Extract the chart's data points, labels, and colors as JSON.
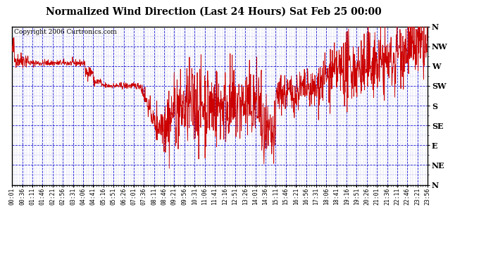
{
  "title": "Normalized Wind Direction (Last 24 Hours) Sat Feb 25 00:00",
  "copyright_text": "Copyright 2006 Curtronics.com",
  "ytick_labels": [
    "N",
    "NW",
    "W",
    "SW",
    "S",
    "SE",
    "E",
    "NE",
    "N"
  ],
  "ytick_values": [
    8,
    7,
    6,
    5,
    4,
    3,
    2,
    1,
    0
  ],
  "line_color": "#cc0000",
  "background_color": "#ffffff",
  "grid_color": "#0000cc",
  "border_color": "#000000",
  "title_fontsize": 10,
  "label_fontsize": 8,
  "copyright_fontsize": 6.5,
  "xtick_labels": [
    "00:01",
    "00:36",
    "01:11",
    "01:46",
    "02:21",
    "02:56",
    "03:31",
    "04:06",
    "04:41",
    "05:16",
    "05:51",
    "06:26",
    "07:01",
    "07:36",
    "08:11",
    "08:46",
    "09:21",
    "09:56",
    "10:31",
    "11:06",
    "11:41",
    "12:16",
    "12:51",
    "13:26",
    "14:01",
    "14:36",
    "15:11",
    "15:46",
    "16:21",
    "16:56",
    "17:31",
    "18:06",
    "18:41",
    "19:16",
    "19:51",
    "20:26",
    "21:01",
    "21:36",
    "22:11",
    "22:46",
    "23:21",
    "23:56"
  ],
  "num_points": 1440,
  "ylim_min": 0,
  "ylim_max": 8
}
